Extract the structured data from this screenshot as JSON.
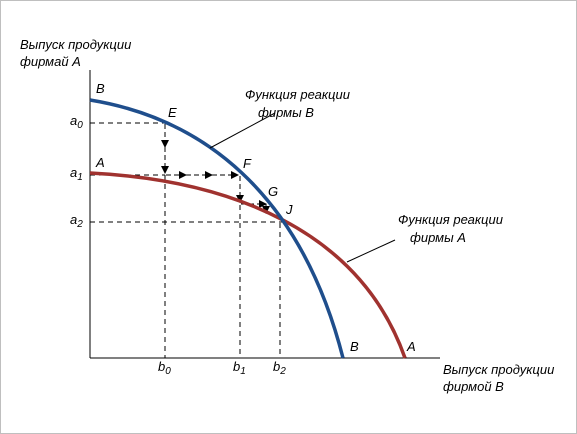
{
  "y_axis_title": [
    "Выпуск продукции",
    "фирмай А"
  ],
  "x_axis_title": [
    "Выпуск продукции",
    "фирмой В"
  ],
  "curve_b": {
    "label_top": "B",
    "label_end": "B",
    "name": [
      "Функция реакции",
      "фирмы В"
    ],
    "color": "#1f4e8c"
  },
  "curve_a": {
    "label_top": "A",
    "label_end": "A",
    "name": [
      "Функция реакции",
      "фирмы А"
    ],
    "color": "#a0322f"
  },
  "points": {
    "e": "E",
    "f": "F",
    "g": "G",
    "j": "J"
  },
  "y_ticks": [
    {
      "base": "a",
      "sub": "0"
    },
    {
      "base": "a",
      "sub": "1"
    },
    {
      "base": "a",
      "sub": "2"
    }
  ],
  "x_ticks": [
    {
      "base": "b",
      "sub": "0"
    },
    {
      "base": "b",
      "sub": "1"
    },
    {
      "base": "b",
      "sub": "2"
    }
  ]
}
